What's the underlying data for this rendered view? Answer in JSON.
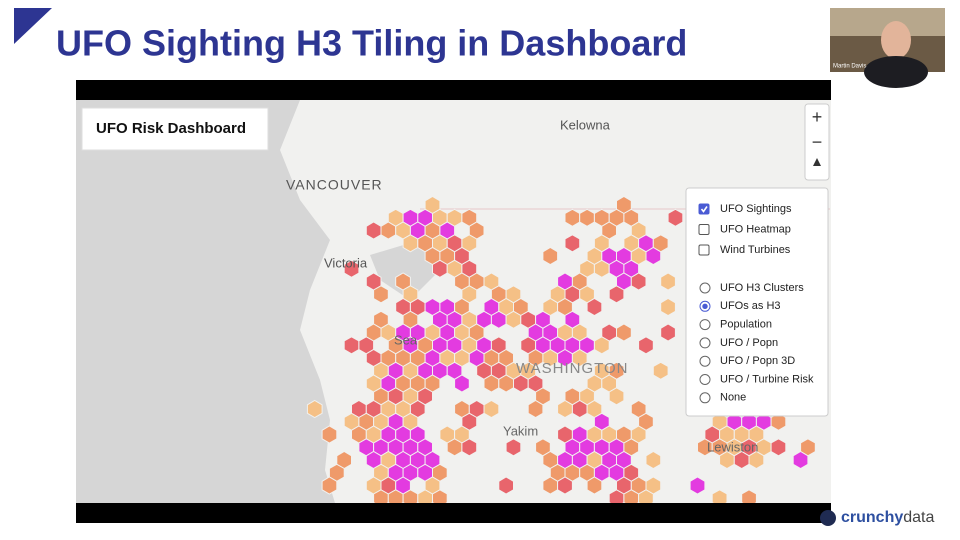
{
  "slide": {
    "title": "UFO Sighting H3 Tiling in Dashboard"
  },
  "webcam": {
    "name": "Martin Davis"
  },
  "dashboard": {
    "title": "UFO Risk Dashboard",
    "zoom_in": "+",
    "zoom_out": "−"
  },
  "map_labels": [
    "Kelowna",
    "VANCOUVER",
    "Victoria",
    "Sea",
    "WASHINGTON",
    "Yakim",
    "Lewiston"
  ],
  "layers": {
    "checkboxes": [
      {
        "label": "UFO Sightings",
        "checked": true
      },
      {
        "label": "UFO Heatmap",
        "checked": false
      },
      {
        "label": "Wind Turbines",
        "checked": false
      }
    ],
    "radios": [
      {
        "label": "UFO H3 Clusters",
        "selected": false
      },
      {
        "label": "UFOs as H3",
        "selected": true
      },
      {
        "label": "Population",
        "selected": false
      },
      {
        "label": "UFO / Popn",
        "selected": false
      },
      {
        "label": "UFO / Popn 3D",
        "selected": false
      },
      {
        "label": "UFO / Turbine Risk",
        "selected": false
      },
      {
        "label": "None",
        "selected": false
      }
    ]
  },
  "logo": {
    "first": "crunchy",
    "second": "data"
  }
}
